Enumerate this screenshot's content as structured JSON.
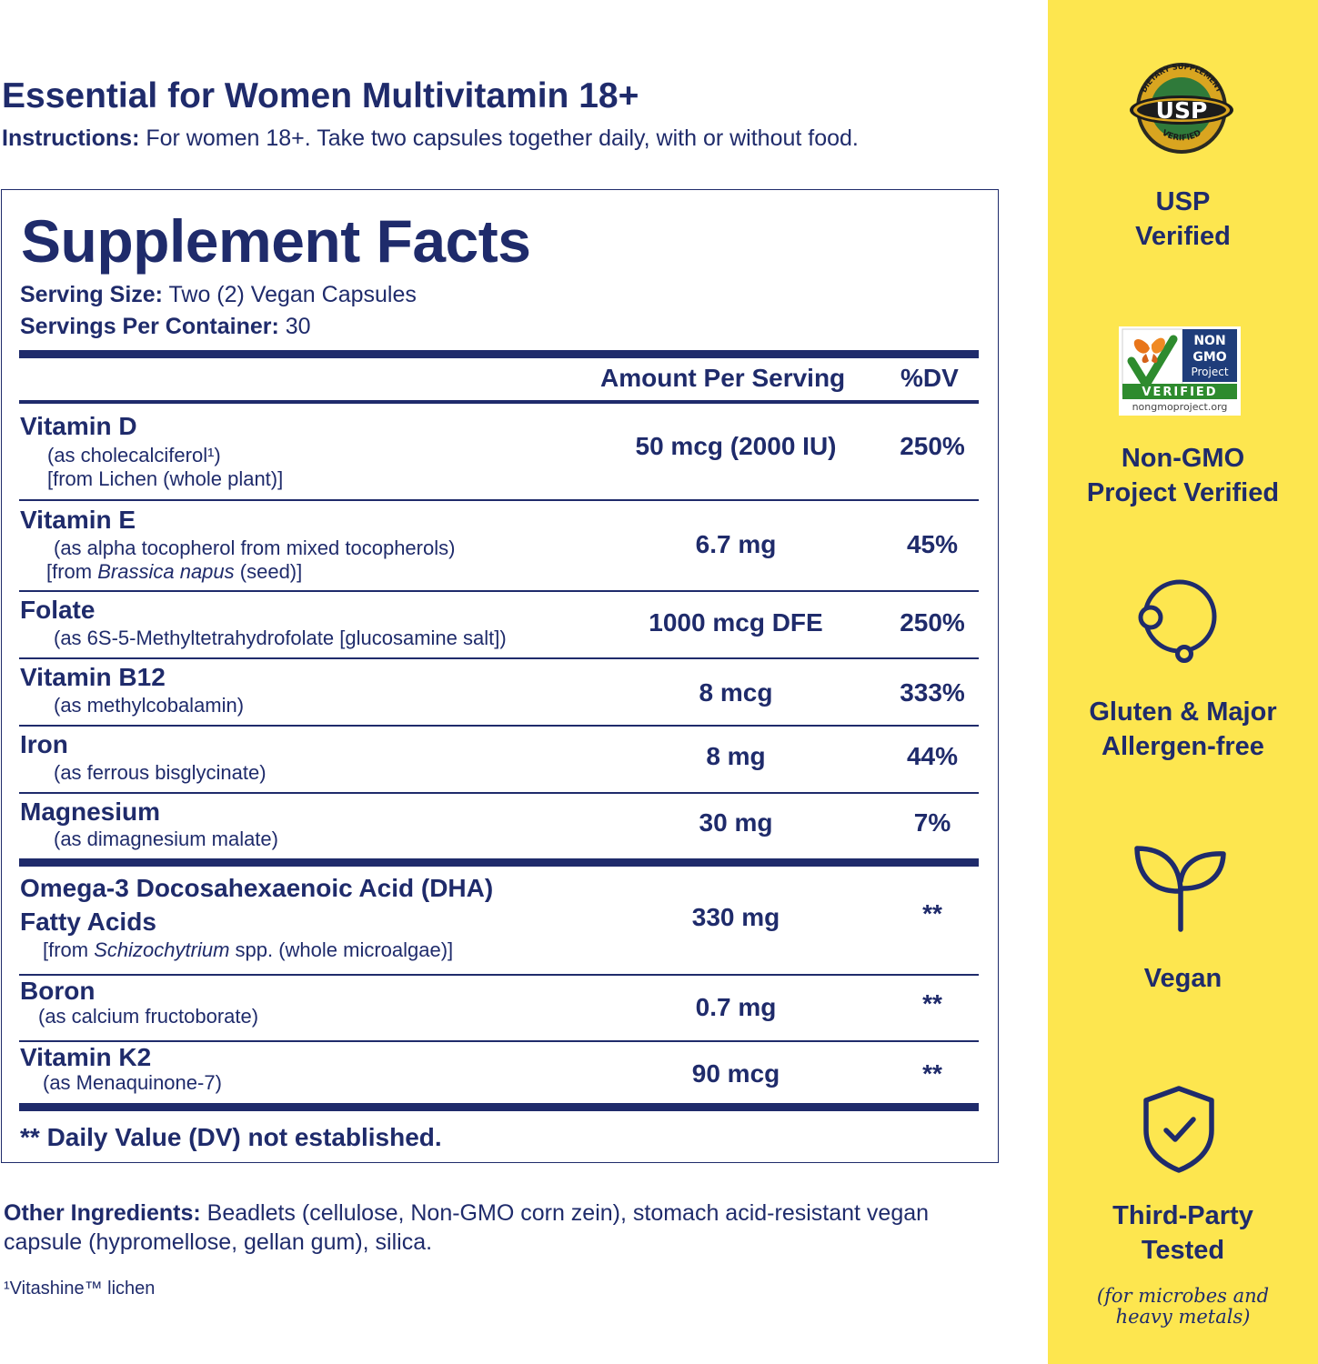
{
  "header": {
    "title": "Essential for Women Multivitamin 18+",
    "instructions_label": "Instructions:",
    "instructions_text": "For women 18+. Take two capsules together daily, with or without food."
  },
  "facts": {
    "title": "Supplement Facts",
    "serving_size_label": "Serving Size:",
    "serving_size_value": "Two (2) Vegan Capsules",
    "servings_label": "Servings Per Container:",
    "servings_value": "30",
    "col_amount": "Amount Per Serving",
    "col_dv": "%DV",
    "rows": [
      {
        "name": "Vitamin D",
        "sub1": "(as cholecalciferol¹)",
        "sub2": "[from Lichen (whole plant)]",
        "amount": "50 mcg (2000 IU)",
        "dv": "250%"
      },
      {
        "name": "Vitamin E",
        "sub1": "(as alpha tocopherol from mixed tocopherols)",
        "sub2_pre": "[from ",
        "sub2_ital": "Brassica napus",
        "sub2_post": " (seed)]",
        "amount": "6.7 mg",
        "dv": "45%"
      },
      {
        "name": "Folate",
        "sub1": "(as 6S-5-Methyltetrahydrofolate [glucosamine salt])",
        "amount": "1000 mcg DFE",
        "dv": "250%"
      },
      {
        "name": "Vitamin B12",
        "sub1": "(as methylcobalamin)",
        "amount": "8 mcg",
        "dv": "333%"
      },
      {
        "name": "Iron",
        "sub1": "(as ferrous bisglycinate)",
        "amount": "8 mg",
        "dv": "44%"
      },
      {
        "name": "Magnesium",
        "sub1": "(as dimagnesium malate)",
        "amount": "30 mg",
        "dv": "7%"
      },
      {
        "name": "Omega-3 Docosahexaenoic Acid (DHA)",
        "name2": "Fatty Acids",
        "sub2_pre": "[from ",
        "sub2_ital": "Schizochytrium",
        "sub2_post": " spp. (whole microalgae)]",
        "amount": "330 mg",
        "dv": "**"
      },
      {
        "name": "Boron",
        "sub1": "(as calcium fructoborate)",
        "amount": "0.7 mg",
        "dv": "**"
      },
      {
        "name": "Vitamin K2",
        "sub1": "(as Menaquinone-7)",
        "amount": "90 mcg",
        "dv": "**"
      }
    ],
    "footnote": "** Daily Value (DV) not established."
  },
  "other": {
    "label": "Other Ingredients:",
    "text": "Beadlets (cellulose, Non-GMO corn zein), stomach acid-resistant vegan capsule (hypromellose, gellan gum), silica.",
    "footnote": "¹Vitashine™ lichen"
  },
  "badges": {
    "usp_top_text": "DIETARY SUPPLEMENT",
    "usp_logo": "USP",
    "usp_bottom_text": "VERIFIED",
    "usp_line1": "USP",
    "usp_line2": "Verified",
    "ngmo_non": "NON",
    "ngmo_gmo": "GMO",
    "ngmo_project": "Project",
    "ngmo_verified": "VERIFIED",
    "ngmo_url": "nongmoproject.org",
    "ngmo_line1": "Non-GMO",
    "ngmo_line2": "Project Verified",
    "gluten_line1": "Gluten & Major",
    "gluten_line2": "Allergen-free",
    "vegan": "Vegan",
    "third_line1": "Third-Party",
    "third_line2": "Tested",
    "third_note1": "(for microbes and",
    "third_note2": "heavy metals)",
    "colors": {
      "panel": "#fde64f",
      "ink": "#1f2b6b"
    }
  }
}
